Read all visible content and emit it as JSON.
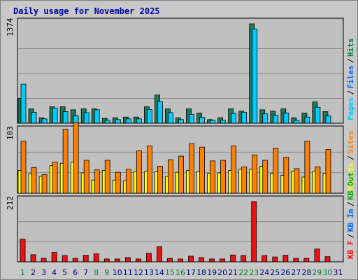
{
  "title": "Daily usage for November 2025",
  "colors": {
    "pages": "#00ccff",
    "files": "#0066ff",
    "hits": "#008040",
    "visits": "#ffff00",
    "sites": "#ff8000",
    "kb_in": "#0066ff",
    "kb_out": "#00aa00",
    "kb_f": "#ff0000",
    "panel_bg": "#c0c0c0",
    "weekend_day": "#008040",
    "weekday_day": "#000080"
  },
  "chart_data": {
    "type": "bar",
    "days": [
      "1",
      "2",
      "3",
      "4",
      "5",
      "6",
      "7",
      "8",
      "9",
      "10",
      "11",
      "12",
      "13",
      "14",
      "15",
      "16",
      "17",
      "18",
      "19",
      "20",
      "21",
      "22",
      "23",
      "24",
      "25",
      "26",
      "27",
      "28",
      "29",
      "30",
      "31"
    ],
    "weekend_days": [
      "1",
      "8",
      "9",
      "15",
      "16",
      "22",
      "23",
      "29",
      "30"
    ],
    "panels": [
      {
        "name": "hits-files-pages",
        "ymax_label": "1374",
        "ymax": 1374,
        "legend": [
          {
            "text": "Pages",
            "color": "#00ccff"
          },
          {
            "text": "Files",
            "color": "#0066ff"
          },
          {
            "text": "Hits",
            "color": "#008040"
          }
        ],
        "series": [
          {
            "name": "Hits",
            "color": "#1a7a5a",
            "values": [
              345,
              199,
              75,
              227,
              227,
              185,
              199,
              199,
              67,
              75,
              85,
              85,
              227,
              390,
              199,
              75,
              199,
              140,
              50,
              75,
              199,
              167,
              1374,
              185,
              167,
              199,
              75,
              140,
              295,
              160,
              0
            ]
          },
          {
            "name": "Pages",
            "color": "#00ccff",
            "values": [
              540,
              150,
              60,
              210,
              160,
              100,
              145,
              185,
              40,
              50,
              60,
              60,
              190,
              300,
              145,
              50,
              120,
              80,
              40,
              40,
              135,
              150,
              1300,
              130,
              110,
              140,
              40,
              85,
              220,
              100,
              0
            ]
          }
        ]
      },
      {
        "name": "visits-sites",
        "ymax_label": "103",
        "ymax": 103,
        "legend": [
          {
            "text": "Visits",
            "color": "#ffff00"
          },
          {
            "text": "Sites",
            "color": "#ff8000"
          }
        ],
        "series": [
          {
            "name": "Visits",
            "color": "#ffff00",
            "values": [
              38,
              32,
              28,
              46,
              50,
              52,
              34,
              22,
              38,
              22,
              21,
              36,
              36,
              36,
              28,
              35,
              38,
              36,
              33,
              34,
              38,
              40,
              40,
              45,
              33,
              30,
              37,
              27,
              37,
              33,
              0
            ]
          },
          {
            "name": "Sites",
            "color": "#ff8000",
            "values": [
              87,
              43,
              31,
              52,
              107,
              118,
              55,
              39,
              55,
              35,
              40,
              71,
              79,
              45,
              56,
              62,
              83,
              77,
              54,
              55,
              79,
              44,
              64,
              55,
              75,
              60,
              41,
              87,
              44,
              73,
              0
            ]
          }
        ]
      },
      {
        "name": "kb",
        "ymax_label": "212",
        "ymax": 212,
        "legend": [
          {
            "text": "KB F",
            "color": "#ff0000"
          },
          {
            "text": "KB In",
            "color": "#0066ff"
          },
          {
            "text": "KB Out",
            "color": "#00aa00"
          }
        ],
        "series": [
          {
            "name": "KB F",
            "color": "#ee1111",
            "values": [
              80,
              25,
              12,
              33,
              22,
              12,
              23,
              28,
              10,
              10,
              15,
              10,
              30,
              53,
              12,
              10,
              20,
              15,
              10,
              10,
              24,
              22,
              212,
              22,
              17,
              23,
              12,
              12,
              45,
              18,
              0
            ]
          }
        ]
      }
    ]
  }
}
